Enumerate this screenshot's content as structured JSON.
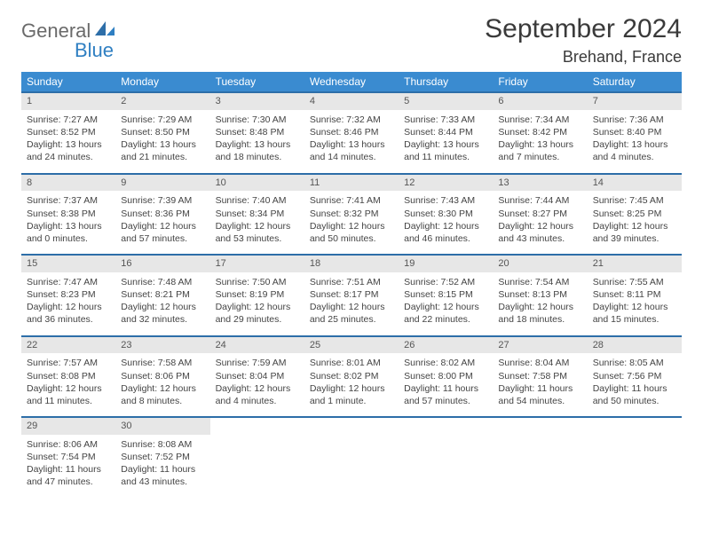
{
  "brand": {
    "general": "General",
    "blue": "Blue"
  },
  "title": "September 2024",
  "location": "Brehand, France",
  "colors": {
    "header_bg": "#3a8bd0",
    "header_text": "#ffffff",
    "row_divider": "#2d6ea8",
    "daynum_bg": "#e7e7e7",
    "body_text": "#444444",
    "title_text": "#3a3a3a",
    "logo_gray": "#6a6a6a",
    "logo_blue": "#2f7fc2"
  },
  "weekdays": [
    "Sunday",
    "Monday",
    "Tuesday",
    "Wednesday",
    "Thursday",
    "Friday",
    "Saturday"
  ],
  "weeks": [
    [
      {
        "n": "1",
        "sr": "Sunrise: 7:27 AM",
        "ss": "Sunset: 8:52 PM",
        "d1": "Daylight: 13 hours",
        "d2": "and 24 minutes."
      },
      {
        "n": "2",
        "sr": "Sunrise: 7:29 AM",
        "ss": "Sunset: 8:50 PM",
        "d1": "Daylight: 13 hours",
        "d2": "and 21 minutes."
      },
      {
        "n": "3",
        "sr": "Sunrise: 7:30 AM",
        "ss": "Sunset: 8:48 PM",
        "d1": "Daylight: 13 hours",
        "d2": "and 18 minutes."
      },
      {
        "n": "4",
        "sr": "Sunrise: 7:32 AM",
        "ss": "Sunset: 8:46 PM",
        "d1": "Daylight: 13 hours",
        "d2": "and 14 minutes."
      },
      {
        "n": "5",
        "sr": "Sunrise: 7:33 AM",
        "ss": "Sunset: 8:44 PM",
        "d1": "Daylight: 13 hours",
        "d2": "and 11 minutes."
      },
      {
        "n": "6",
        "sr": "Sunrise: 7:34 AM",
        "ss": "Sunset: 8:42 PM",
        "d1": "Daylight: 13 hours",
        "d2": "and 7 minutes."
      },
      {
        "n": "7",
        "sr": "Sunrise: 7:36 AM",
        "ss": "Sunset: 8:40 PM",
        "d1": "Daylight: 13 hours",
        "d2": "and 4 minutes."
      }
    ],
    [
      {
        "n": "8",
        "sr": "Sunrise: 7:37 AM",
        "ss": "Sunset: 8:38 PM",
        "d1": "Daylight: 13 hours",
        "d2": "and 0 minutes."
      },
      {
        "n": "9",
        "sr": "Sunrise: 7:39 AM",
        "ss": "Sunset: 8:36 PM",
        "d1": "Daylight: 12 hours",
        "d2": "and 57 minutes."
      },
      {
        "n": "10",
        "sr": "Sunrise: 7:40 AM",
        "ss": "Sunset: 8:34 PM",
        "d1": "Daylight: 12 hours",
        "d2": "and 53 minutes."
      },
      {
        "n": "11",
        "sr": "Sunrise: 7:41 AM",
        "ss": "Sunset: 8:32 PM",
        "d1": "Daylight: 12 hours",
        "d2": "and 50 minutes."
      },
      {
        "n": "12",
        "sr": "Sunrise: 7:43 AM",
        "ss": "Sunset: 8:30 PM",
        "d1": "Daylight: 12 hours",
        "d2": "and 46 minutes."
      },
      {
        "n": "13",
        "sr": "Sunrise: 7:44 AM",
        "ss": "Sunset: 8:27 PM",
        "d1": "Daylight: 12 hours",
        "d2": "and 43 minutes."
      },
      {
        "n": "14",
        "sr": "Sunrise: 7:45 AM",
        "ss": "Sunset: 8:25 PM",
        "d1": "Daylight: 12 hours",
        "d2": "and 39 minutes."
      }
    ],
    [
      {
        "n": "15",
        "sr": "Sunrise: 7:47 AM",
        "ss": "Sunset: 8:23 PM",
        "d1": "Daylight: 12 hours",
        "d2": "and 36 minutes."
      },
      {
        "n": "16",
        "sr": "Sunrise: 7:48 AM",
        "ss": "Sunset: 8:21 PM",
        "d1": "Daylight: 12 hours",
        "d2": "and 32 minutes."
      },
      {
        "n": "17",
        "sr": "Sunrise: 7:50 AM",
        "ss": "Sunset: 8:19 PM",
        "d1": "Daylight: 12 hours",
        "d2": "and 29 minutes."
      },
      {
        "n": "18",
        "sr": "Sunrise: 7:51 AM",
        "ss": "Sunset: 8:17 PM",
        "d1": "Daylight: 12 hours",
        "d2": "and 25 minutes."
      },
      {
        "n": "19",
        "sr": "Sunrise: 7:52 AM",
        "ss": "Sunset: 8:15 PM",
        "d1": "Daylight: 12 hours",
        "d2": "and 22 minutes."
      },
      {
        "n": "20",
        "sr": "Sunrise: 7:54 AM",
        "ss": "Sunset: 8:13 PM",
        "d1": "Daylight: 12 hours",
        "d2": "and 18 minutes."
      },
      {
        "n": "21",
        "sr": "Sunrise: 7:55 AM",
        "ss": "Sunset: 8:11 PM",
        "d1": "Daylight: 12 hours",
        "d2": "and 15 minutes."
      }
    ],
    [
      {
        "n": "22",
        "sr": "Sunrise: 7:57 AM",
        "ss": "Sunset: 8:08 PM",
        "d1": "Daylight: 12 hours",
        "d2": "and 11 minutes."
      },
      {
        "n": "23",
        "sr": "Sunrise: 7:58 AM",
        "ss": "Sunset: 8:06 PM",
        "d1": "Daylight: 12 hours",
        "d2": "and 8 minutes."
      },
      {
        "n": "24",
        "sr": "Sunrise: 7:59 AM",
        "ss": "Sunset: 8:04 PM",
        "d1": "Daylight: 12 hours",
        "d2": "and 4 minutes."
      },
      {
        "n": "25",
        "sr": "Sunrise: 8:01 AM",
        "ss": "Sunset: 8:02 PM",
        "d1": "Daylight: 12 hours",
        "d2": "and 1 minute."
      },
      {
        "n": "26",
        "sr": "Sunrise: 8:02 AM",
        "ss": "Sunset: 8:00 PM",
        "d1": "Daylight: 11 hours",
        "d2": "and 57 minutes."
      },
      {
        "n": "27",
        "sr": "Sunrise: 8:04 AM",
        "ss": "Sunset: 7:58 PM",
        "d1": "Daylight: 11 hours",
        "d2": "and 54 minutes."
      },
      {
        "n": "28",
        "sr": "Sunrise: 8:05 AM",
        "ss": "Sunset: 7:56 PM",
        "d1": "Daylight: 11 hours",
        "d2": "and 50 minutes."
      }
    ],
    [
      {
        "n": "29",
        "sr": "Sunrise: 8:06 AM",
        "ss": "Sunset: 7:54 PM",
        "d1": "Daylight: 11 hours",
        "d2": "and 47 minutes."
      },
      {
        "n": "30",
        "sr": "Sunrise: 8:08 AM",
        "ss": "Sunset: 7:52 PM",
        "d1": "Daylight: 11 hours",
        "d2": "and 43 minutes."
      },
      null,
      null,
      null,
      null,
      null
    ]
  ]
}
